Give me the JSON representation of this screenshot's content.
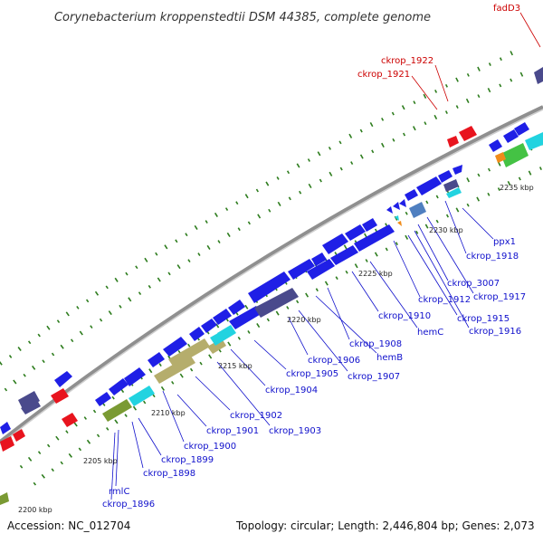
{
  "title": "Corynebacterium kroppenstedtii DSM 44385, complete genome",
  "accession": "Accession: NC_012704",
  "summary": "Topology: circular; Length: 2,446,804 bp; Genes: 2,073",
  "colors": {
    "backbone": "#8f8f8f",
    "cds": "#1f1fe6",
    "rna": "#e8141e",
    "label_blue": "#1010cc",
    "label_red": "#cc0000",
    "tick_green": "#2e7d1e",
    "cog_khaki": "#b5ad6c",
    "cog_cyan": "#22d3e0",
    "cog_olive": "#7a9a33",
    "cog_navy": "#4a4a8c",
    "cog_green": "#44c244",
    "cog_orange": "#f08c1a",
    "cog_steel": "#4f7fc0"
  },
  "scale_labels": [
    "2200 kbp",
    "2205 kbp",
    "2210 kbp",
    "2215 kbp",
    "2220 kbp",
    "2225 kbp",
    "2230 kbp",
    "2235 kbp"
  ],
  "gene_labels_blue": [
    "ckrop_1896",
    "rmlC",
    "ckrop_1898",
    "ckrop_1899",
    "ckrop_1900",
    "ckrop_1901",
    "ckrop_1902",
    "ckrop_1903",
    "ckrop_1904",
    "ckrop_1905",
    "ckrop_1906",
    "ckrop_1907",
    "hemB",
    "ckrop_1908",
    "ckrop_1910",
    "hemC",
    "ckrop_1912",
    "ckrop_1915",
    "ckrop_1916",
    "ckrop_3007",
    "ckrop_1917",
    "ckrop_1918",
    "ppx1"
  ],
  "gene_labels_red": [
    "ckrop_1921",
    "ckrop_1922",
    "fadD3"
  ]
}
